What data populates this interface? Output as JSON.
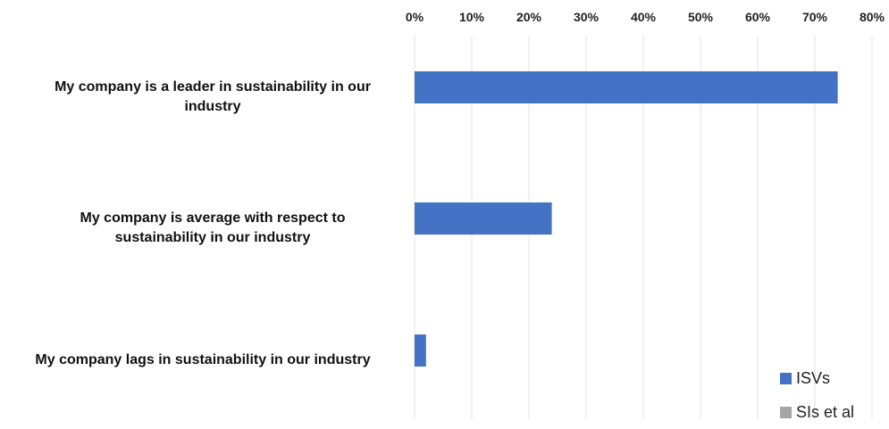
{
  "chart_data": {
    "type": "bar",
    "orientation": "horizontal",
    "categories": [
      "My company is a leader in sustainability in our industry",
      "My company is average with respect to sustainability in our industry",
      "My company lags in sustainability in our industry"
    ],
    "category_lines": [
      [
        "My company is a leader in sustainability in our",
        "industry"
      ],
      [
        "My company is average with respect to",
        "sustainability in our industry"
      ],
      [
        "My company lags in sustainability in our industry"
      ]
    ],
    "series": [
      {
        "name": "ISVs",
        "values": [
          74,
          24,
          2
        ],
        "color": "#4472C4"
      },
      {
        "name": "SIs et al",
        "values": [
          0,
          0,
          0
        ],
        "color": "#A5A5A5"
      }
    ],
    "x_ticks": [
      "0%",
      "10%",
      "20%",
      "30%",
      "40%",
      "50%",
      "60%",
      "70%",
      "80%"
    ],
    "xlim": [
      0,
      80
    ],
    "x_axis_position": "top",
    "grid": true,
    "legend_position": "bottom-right",
    "title": "",
    "xlabel": "",
    "ylabel": ""
  }
}
